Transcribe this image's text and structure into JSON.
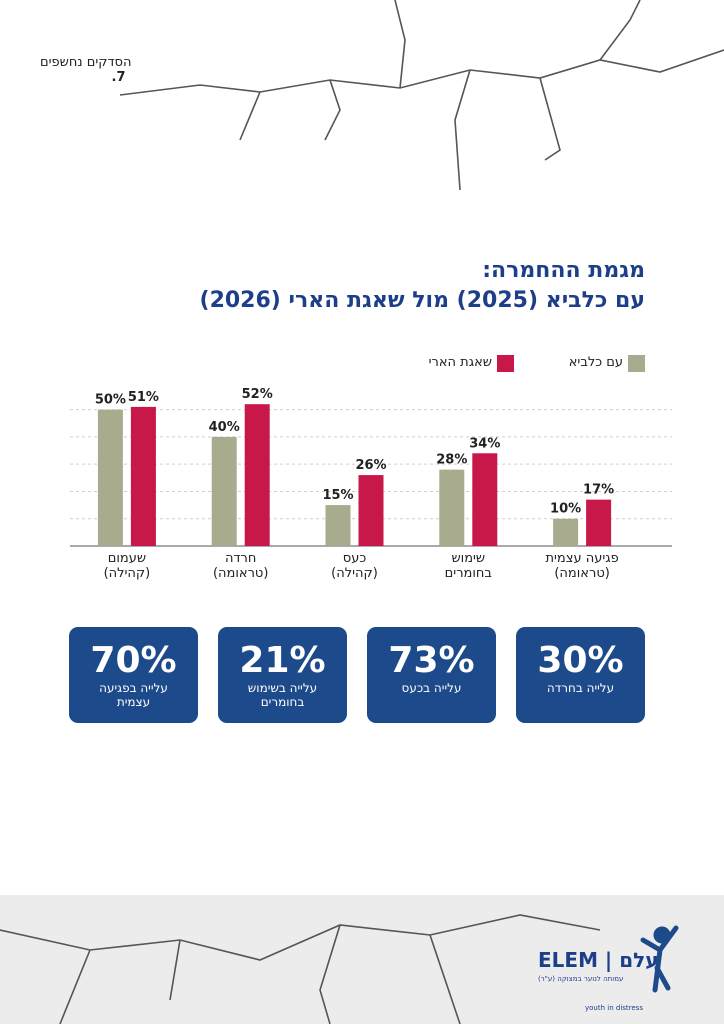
{
  "header": {
    "section": "הסדקים נחשפים",
    "page": "7."
  },
  "chart_data": {
    "type": "bar",
    "title": "מגמת ההחמרה:\nעם כלביא (2025) מול שאגת הארי (2026)",
    "categories": [
      "פגיעה עצמית\n(טראומה)",
      "שימוש\nבחומרים",
      "כעס\n(קהילה)",
      "חרדה\n(טראומה)",
      "שעמום\n(קהילה)"
    ],
    "series": [
      {
        "name": "עם כלביא",
        "color": "#a9ab8f",
        "values": [
          10,
          28,
          15,
          40,
          50
        ],
        "value_labels": [
          "10%",
          "28%",
          "15%",
          "40%",
          "50%"
        ]
      },
      {
        "name": "שאגת הארי",
        "color": "#c8184a",
        "values": [
          17,
          34,
          26,
          52,
          51
        ],
        "value_labels": [
          "17%",
          "34%",
          "26%",
          "52%",
          "51%"
        ]
      }
    ],
    "ylim": [
      0,
      55
    ],
    "yticks": [
      10,
      20,
      30,
      40,
      50
    ],
    "grid": true
  },
  "stats": [
    {
      "value": "30%",
      "label": "עלייה בחרדה"
    },
    {
      "value": "73%",
      "label": "עלייה בכעס"
    },
    {
      "value": "21%",
      "label": "עלייה בשימוש\nבחומרים"
    },
    {
      "value": "70%",
      "label": "עלייה בפגיעה\nעצמית"
    }
  ],
  "logo": {
    "name": "ELEM | עלם",
    "tagline": "youth in distress",
    "subtitle": "עמותה לנוער במצוקה (ע\"ר)"
  }
}
